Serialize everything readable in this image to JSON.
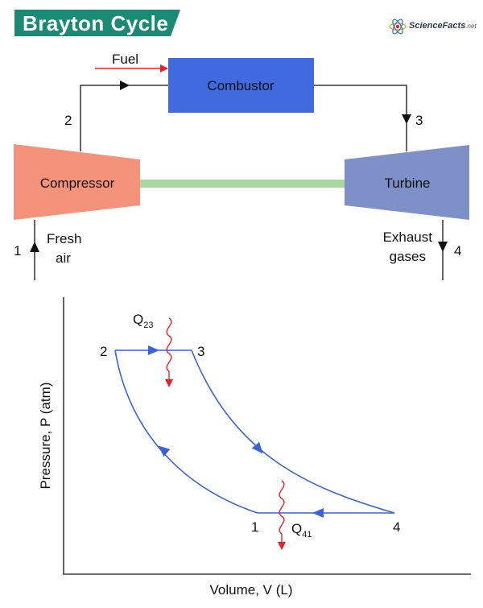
{
  "title": "Brayton Cycle",
  "brand": {
    "name": "ScienceFacts",
    "suffix": ".net"
  },
  "colors": {
    "title_bg": "#1a8a74",
    "compressor": "#f4937a",
    "turbine": "#7f90c9",
    "combustor": "#4169e0",
    "shaft": "#a9d8a0",
    "cycle_line": "#3a63d8",
    "heat": "#e8202a",
    "line": "#111111"
  },
  "schematic": {
    "fuel_label": "Fuel",
    "combustor_label": "Combustor",
    "compressor_label": "Compressor",
    "turbine_label": "Turbine",
    "state_1": "1",
    "state_2": "2",
    "state_3": "3",
    "state_4": "4",
    "inlet_line1": "Fresh",
    "inlet_line2": "air",
    "exhaust_line1": "Exhaust",
    "exhaust_line2": "gases"
  },
  "pv_diagram": {
    "ylabel": "Pressure, P (atm)",
    "xlabel": "Volume, V (L)",
    "point_1": "1",
    "point_2": "2",
    "point_3": "3",
    "point_4": "4",
    "heat_in": {
      "symbol": "Q",
      "subscript": "23"
    },
    "heat_out": {
      "symbol": "Q",
      "subscript": "41"
    }
  }
}
